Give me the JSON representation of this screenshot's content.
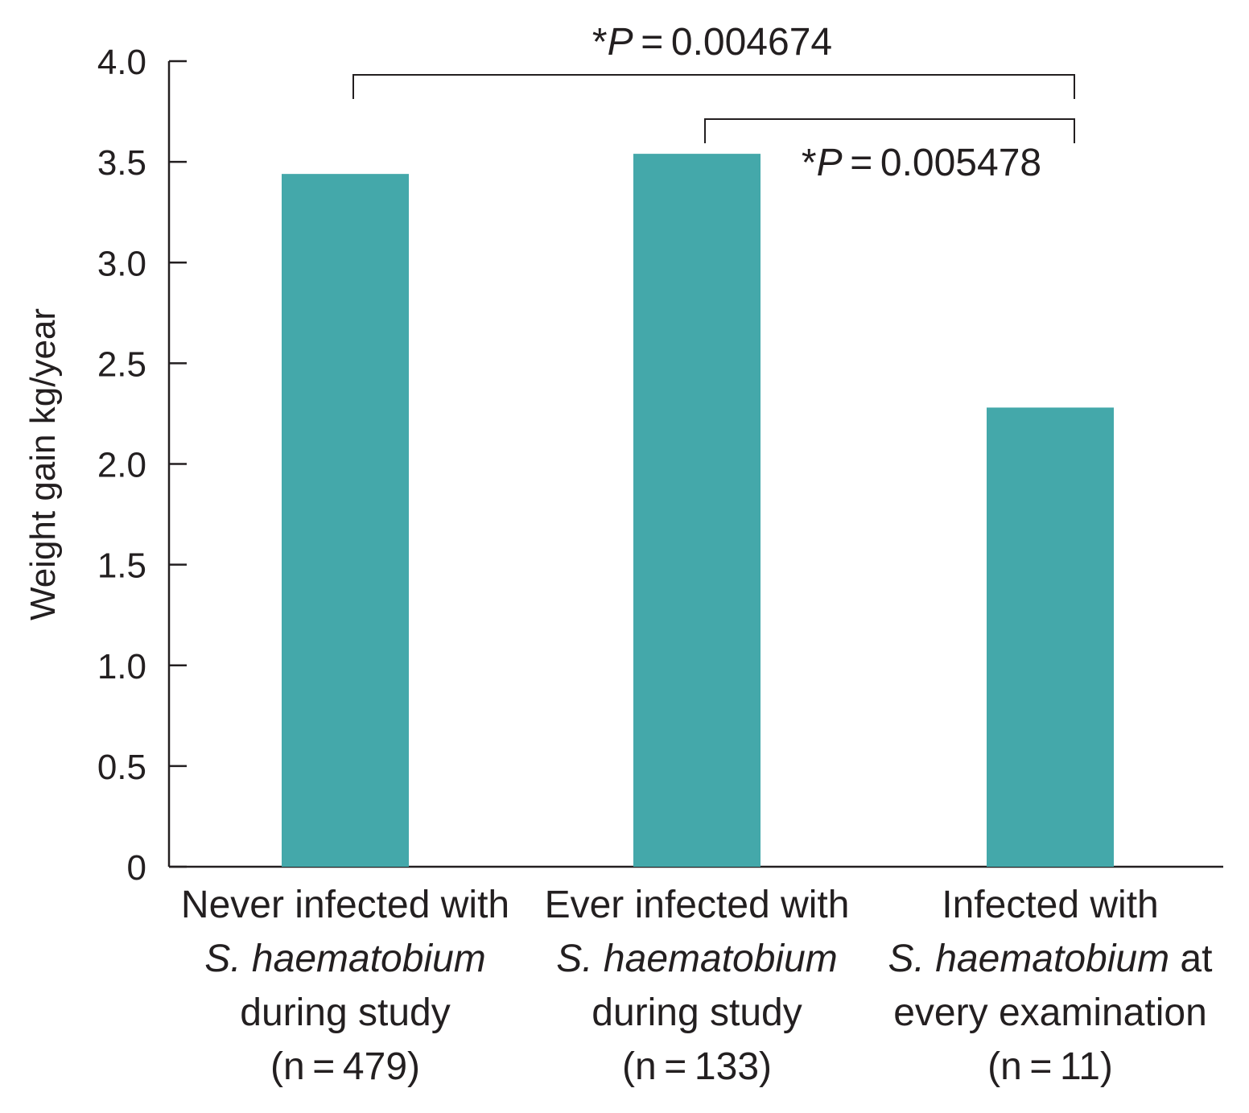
{
  "chart_data": {
    "type": "bar",
    "title": "",
    "xlabel": "",
    "ylabel": "Weight gain kg/year",
    "ylim": [
      0,
      4.0
    ],
    "yticks": [
      "0",
      "0.5",
      "1.0",
      "1.5",
      "2.0",
      "2.5",
      "3.0",
      "3.5",
      "4.0"
    ],
    "grid": false,
    "bar_color": "#44a8aa",
    "categories": [
      {
        "lines": [
          [
            {
              "text": "Never infected with",
              "italic": false
            }
          ],
          [
            {
              "text": "S. haematobium",
              "italic": true
            }
          ],
          [
            {
              "text": "during study",
              "italic": false
            }
          ],
          [
            {
              "text": "(n = 479)",
              "italic": false
            }
          ]
        ]
      },
      {
        "lines": [
          [
            {
              "text": "Ever infected with",
              "italic": false
            }
          ],
          [
            {
              "text": "S. haematobium",
              "italic": true
            }
          ],
          [
            {
              "text": "during study",
              "italic": false
            }
          ],
          [
            {
              "text": "(n = 133)",
              "italic": false
            }
          ]
        ]
      },
      {
        "lines": [
          [
            {
              "text": "Infected with",
              "italic": false
            }
          ],
          [
            {
              "text": "S. haematobium",
              "italic": true
            },
            {
              "text": " at",
              "italic": false
            }
          ],
          [
            {
              "text": "every examination",
              "italic": false
            }
          ],
          [
            {
              "text": "(n = 11)",
              "italic": false
            }
          ]
        ]
      }
    ],
    "values": [
      3.44,
      3.54,
      2.28
    ],
    "annotations": [
      {
        "from": 0,
        "to": 2,
        "star": "*",
        "p": "P",
        "value": " = 0.004674"
      },
      {
        "from": 1,
        "to": 2,
        "star": "*",
        "p": "P",
        "value": " = 0.005478"
      }
    ]
  }
}
